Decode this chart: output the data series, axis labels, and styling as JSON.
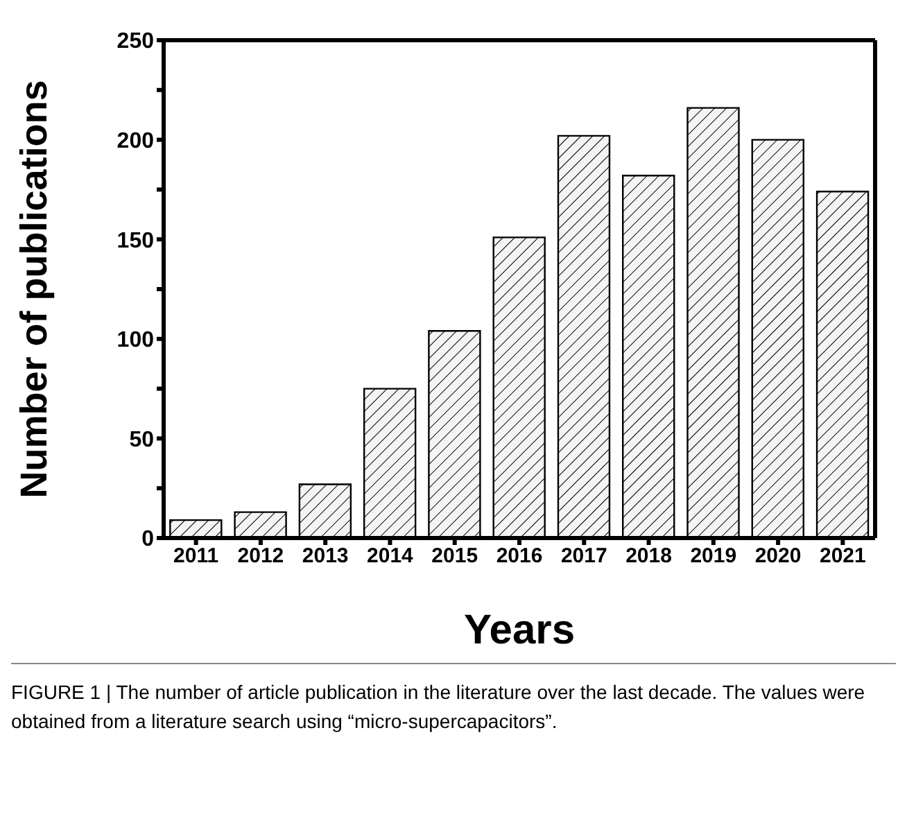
{
  "chart_data": {
    "type": "bar",
    "xlabel": "Years",
    "ylabel": "Number of publications",
    "categories": [
      "2011",
      "2012",
      "2013",
      "2014",
      "2015",
      "2016",
      "2017",
      "2018",
      "2019",
      "2020",
      "2021"
    ],
    "values": [
      9,
      13,
      27,
      75,
      104,
      151,
      202,
      182,
      216,
      200,
      174
    ],
    "color": "#000000",
    "ylim": [
      0,
      250
    ],
    "yticks": [
      0,
      {
        "value": 25,
        "label": null
      },
      50,
      {
        "value": 75,
        "label": null
      },
      100,
      {
        "value": 125,
        "label": null
      },
      150,
      {
        "value": 175,
        "label": null
      },
      200,
      {
        "value": 225,
        "label": null
      },
      250
    ],
    "grid": false,
    "legend": false,
    "annotations": [
      "FIGURE 1 | The number of article publication in the literature over the last decade. The values were obtained from a literature search using “micro-supercapacitors”."
    ]
  }
}
